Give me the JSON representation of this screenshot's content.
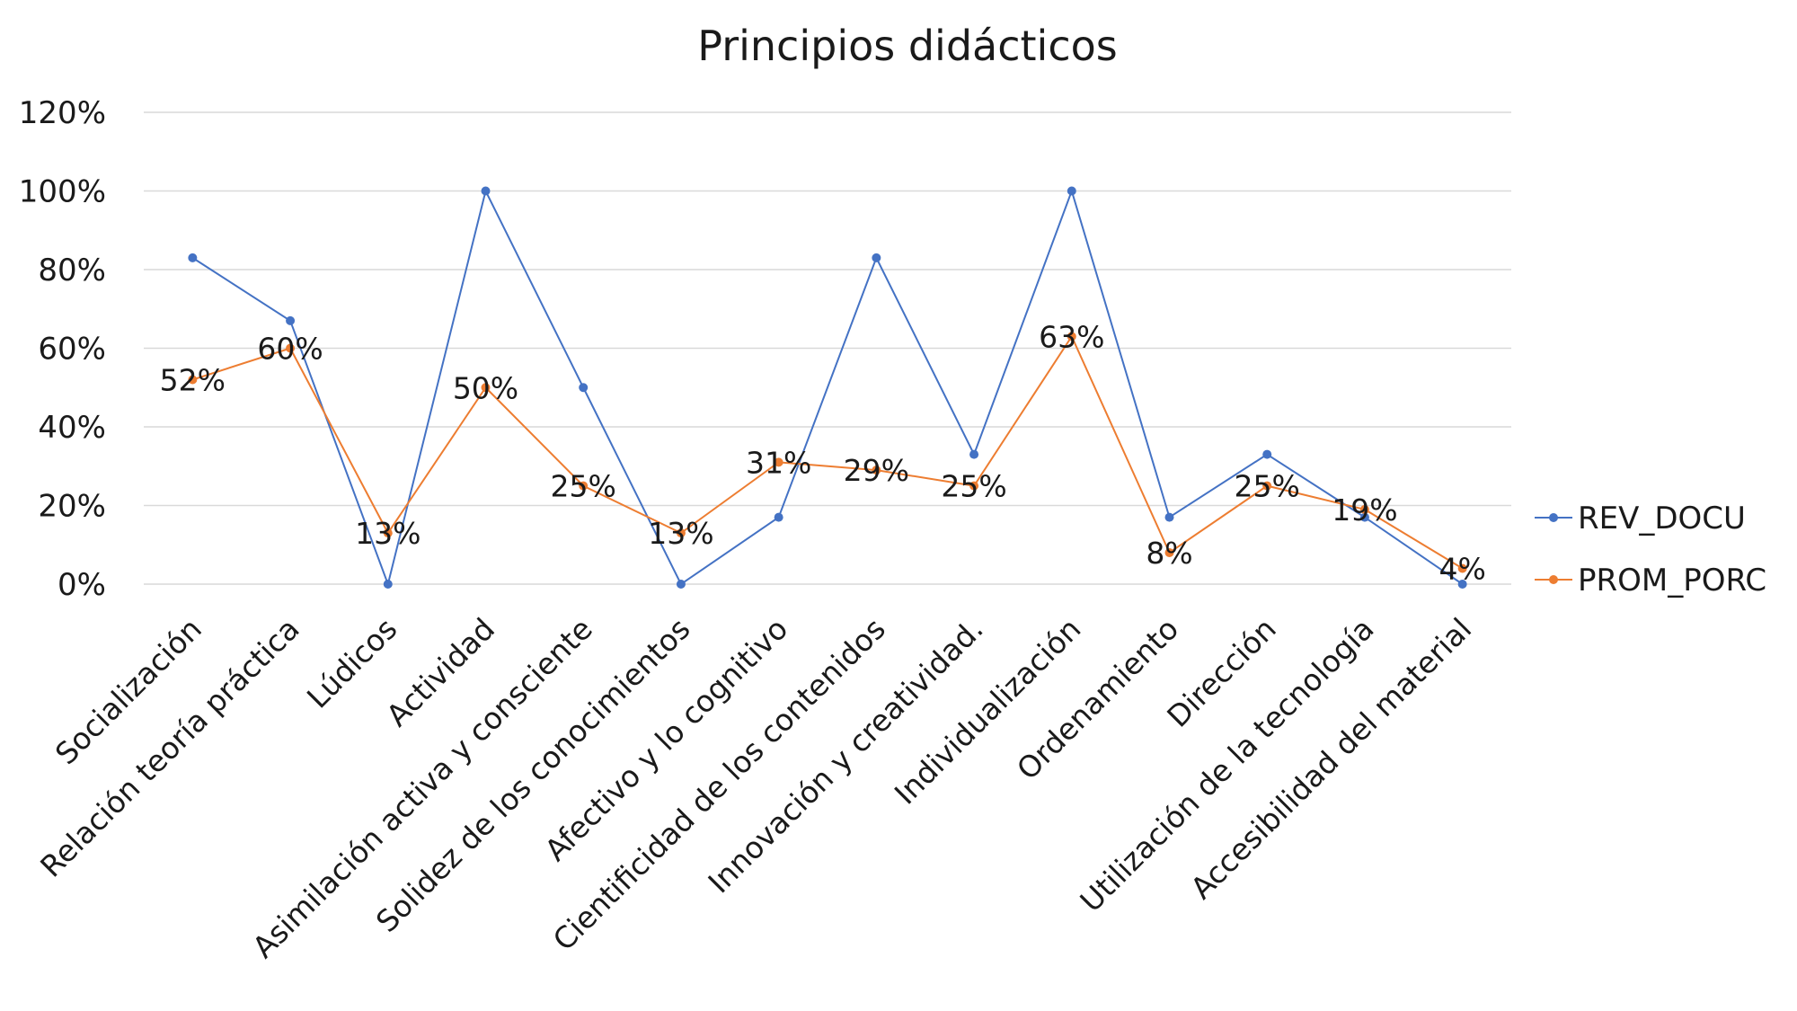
{
  "chart_data": {
    "type": "line",
    "title": "Principios didácticos",
    "xlabel": "",
    "ylabel": "",
    "ylim": [
      0,
      1.2
    ],
    "yticks": [
      0,
      0.2,
      0.4,
      0.6,
      0.8,
      1.0,
      1.2
    ],
    "ytick_labels": [
      "0%",
      "20%",
      "40%",
      "60%",
      "80%",
      "100%",
      "120%"
    ],
    "grid": true,
    "legend": "right",
    "categories": [
      "Socialización",
      "Relación teoría práctica",
      "Lúdicos",
      "Actividad",
      "Asimilación activa y consciente",
      "Solidez de los conocimientos",
      "Afectivo y lo cognitivo",
      "Cientificidad de los contenidos",
      "Innovación y creatividad.",
      "Individualización",
      "Ordenamiento",
      "Dirección",
      "Utilización de la tecnología",
      "Accesibilidad del material"
    ],
    "series": [
      {
        "name": "REV_DOCU",
        "color": "#4472c4",
        "values": [
          0.83,
          0.67,
          0.0,
          1.0,
          0.5,
          0.0,
          0.17,
          0.83,
          0.33,
          1.0,
          0.17,
          0.33,
          0.17,
          0.0
        ]
      },
      {
        "name": "PROM_PORC",
        "color": "#ed7d31",
        "values": [
          0.52,
          0.6,
          0.13,
          0.5,
          0.25,
          0.13,
          0.31,
          0.29,
          0.25,
          0.63,
          0.08,
          0.25,
          0.19,
          0.04
        ],
        "data_labels": [
          "52%",
          "60%",
          "13%",
          "50%",
          "25%",
          "13%",
          "31%",
          "29%",
          "25%",
          "63%",
          "8%",
          "25%",
          "19%",
          "4%"
        ]
      }
    ]
  }
}
